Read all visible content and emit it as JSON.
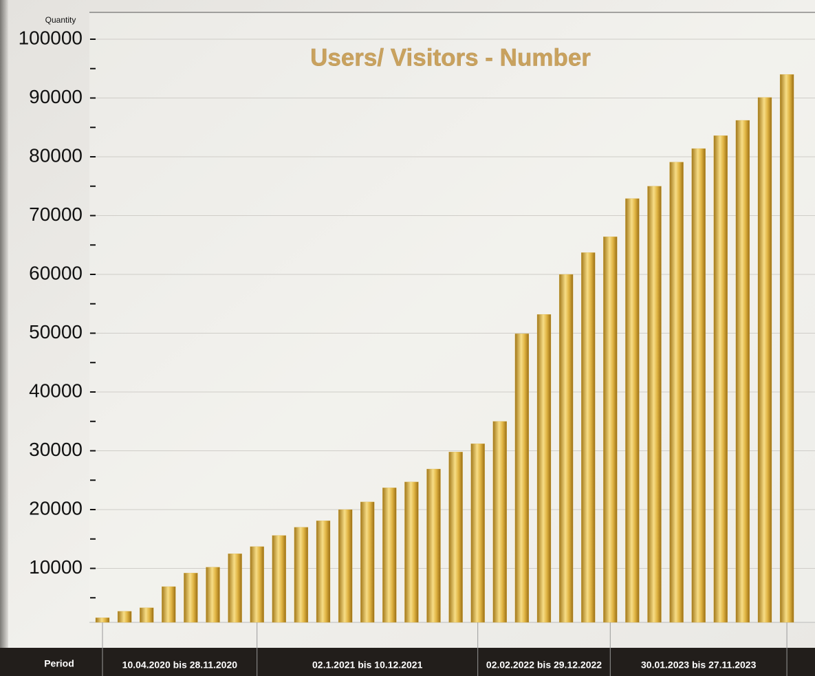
{
  "chart_data": {
    "type": "bar",
    "title": "Users/ Visitors - Number",
    "y_label": "Quantity",
    "x_label": "Period",
    "categories": [
      null,
      null,
      null,
      null,
      null,
      null,
      null,
      null,
      null,
      null,
      null,
      null,
      null,
      null,
      null,
      null,
      null,
      null,
      null,
      null,
      null,
      null,
      null,
      null,
      null,
      null,
      null,
      null,
      null,
      null,
      null,
      null
    ],
    "values": [
      1600,
      2700,
      3300,
      6900,
      9200,
      10200,
      12500,
      13700,
      15600,
      17000,
      18100,
      20000,
      21300,
      23700,
      24700,
      26900,
      29800,
      31200,
      35000,
      49900,
      53200,
      60000,
      63700,
      66400,
      72900,
      75000,
      79100,
      81400,
      83600,
      86200,
      90100,
      94000
    ],
    "color": "#d9ae3c",
    "periods": [
      "10.04.2020 bis 28.11.2020",
      "02.1.2021 bis 10.12.2021",
      "02.02.2022 bis 29.12.2022",
      "30.01.2023 bis 27.11.2023"
    ],
    "ylim": [
      0,
      100000
    ],
    "yticks": [
      10000,
      20000,
      30000,
      40000,
      50000,
      60000,
      70000,
      80000,
      90000,
      100000
    ],
    "minor_yticks": [
      5000,
      15000,
      25000,
      35000,
      45000,
      55000,
      65000,
      75000,
      85000,
      95000
    ],
    "grid": true
  }
}
